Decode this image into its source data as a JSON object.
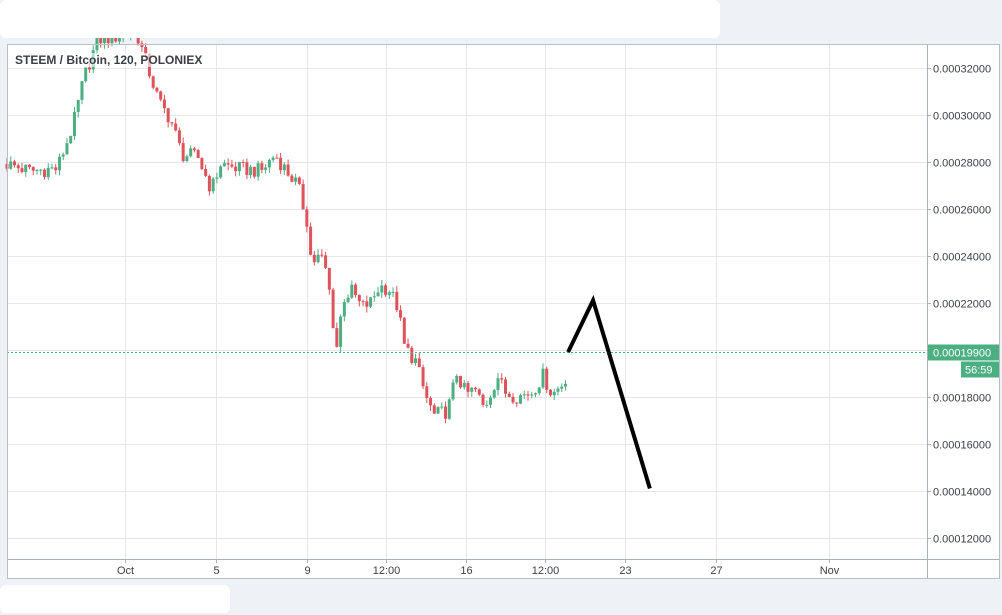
{
  "window": {
    "title": "STEEM / Bitcoin, 120, POLONIEX"
  },
  "colors": {
    "up": "#4caf82",
    "down": "#e0525a",
    "grid": "#e4e8ee",
    "price_line": "#4caf82",
    "drawing": "#000000",
    "tag_bg": "#4caf82"
  },
  "chart_data": {
    "type": "candlestick",
    "title": "STEEM / Bitcoin, 120, POLONIEX",
    "ylim": [
      0.000111,
      0.00033
    ],
    "y_ticks": [
      0.00012,
      0.00014,
      0.00016,
      0.00018,
      0.0002,
      0.00022,
      0.00024,
      0.00026,
      0.00028,
      0.0003,
      0.00032
    ],
    "y_tick_labels": [
      "0.00012000",
      "0.00014000",
      "0.00016000",
      "0.00018000",
      "0.00020000",
      "0.00022000",
      "0.00024000",
      "0.00026000",
      "0.00028000",
      "0.00030000",
      "0.00032000"
    ],
    "x_ticks": [
      "Oct",
      "5",
      "9",
      "12:00",
      "16",
      "12:00",
      "23",
      "27",
      "Nov"
    ],
    "x_tick_positions_days": [
      0,
      4,
      8,
      11.5,
      15,
      18.5,
      22,
      26,
      31
    ],
    "xlim_days": [
      -5.2,
      35.3
    ],
    "grid": true,
    "last_price": 0.000199,
    "last_price_label": "0.00019900",
    "countdown": "56:59",
    "series": [
      {
        "kind": "close_path",
        "points": [
          [
            -5.2,
            0.000279
          ],
          [
            -4.2,
            0.000276
          ],
          [
            -3.0,
            0.000277
          ],
          [
            -2.3,
            0.000295
          ],
          [
            -1.8,
            0.000316
          ],
          [
            -1.2,
            0.000332
          ],
          [
            -0.5,
            0.000333
          ],
          [
            0.5,
            0.000335
          ],
          [
            1.0,
            0.00032
          ],
          [
            1.5,
            0.000305
          ],
          [
            2.0,
            0.000298
          ],
          [
            2.5,
            0.000283
          ],
          [
            3.2,
            0.000282
          ],
          [
            3.8,
            0.000268
          ],
          [
            4.2,
            0.000279
          ],
          [
            5.0,
            0.000277
          ],
          [
            6.0,
            0.000276
          ],
          [
            6.6,
            0.000283
          ],
          [
            7.1,
            0.000276
          ],
          [
            7.6,
            0.00027
          ],
          [
            8.0,
            0.000255
          ],
          [
            8.2,
            0.000237
          ],
          [
            8.6,
            0.00024
          ],
          [
            8.9,
            0.000232
          ],
          [
            9.3,
            0.0002
          ],
          [
            9.6,
            0.000222
          ],
          [
            10.0,
            0.000225
          ],
          [
            10.4,
            0.000218
          ],
          [
            10.8,
            0.00022
          ],
          [
            11.2,
            0.000227
          ],
          [
            11.6,
            0.000226
          ],
          [
            12.0,
            0.000218
          ],
          [
            12.3,
            0.000201
          ],
          [
            12.8,
            0.000195
          ],
          [
            13.2,
            0.000181
          ],
          [
            13.6,
            0.000172
          ],
          [
            14.2,
            0.000174
          ],
          [
            14.6,
            0.00019
          ],
          [
            15.0,
            0.000181
          ],
          [
            15.4,
            0.000183
          ],
          [
            15.8,
            0.000175
          ],
          [
            16.4,
            0.000189
          ],
          [
            16.7,
            0.000182
          ],
          [
            17.3,
            0.00018
          ],
          [
            17.9,
            0.000182
          ],
          [
            18.4,
            0.000189
          ],
          [
            18.8,
            0.000181
          ],
          [
            19.2,
            0.000185
          ],
          [
            19.5,
            0.00019
          ]
        ]
      },
      {
        "kind": "hand_drawn_projection",
        "points": [
          [
            19.5,
            0.000199
          ],
          [
            20.6,
            0.000221
          ],
          [
            23.1,
            0.000141
          ]
        ]
      }
    ]
  }
}
